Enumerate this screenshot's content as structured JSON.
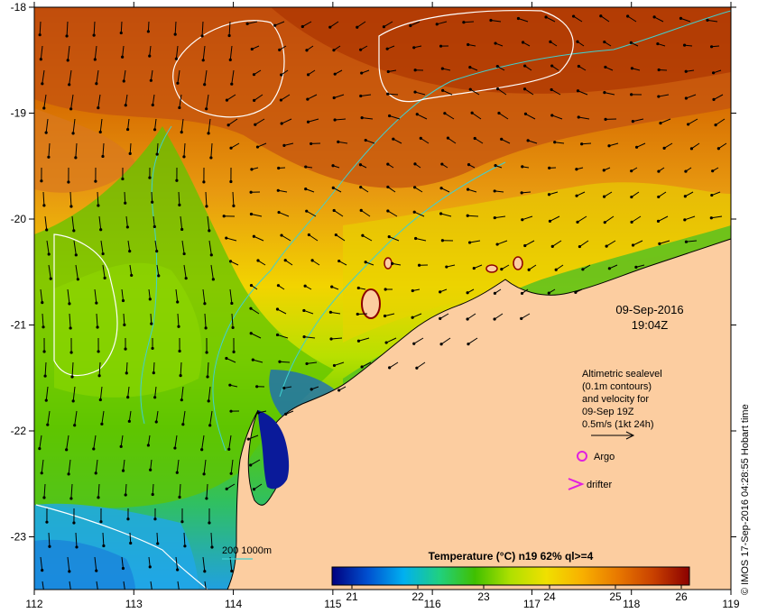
{
  "map": {
    "x_ticks": [
      "112",
      "113",
      "114",
      "115",
      "116",
      "117",
      "118",
      "119"
    ],
    "y_ticks": [
      "-18",
      "-19",
      "-20",
      "-21",
      "-22",
      "-23"
    ],
    "date_line": "09-Sep-2016",
    "time_line": "19:04Z",
    "info": {
      "line1": "Altimetric sealevel",
      "line2": "(0.1m contours)",
      "line3": "and velocity for",
      "line4": "09-Sep 19Z",
      "line5": "0.5m/s (1kt 24h)"
    },
    "legend": {
      "argo": "Argo",
      "drifter": "drifter",
      "argo_color": "#e020e0",
      "drifter_color": "#e020e0"
    },
    "isobath_label": "200  1000m",
    "isobath_color": "#40d0d0",
    "land_color": "#fccda0",
    "colorbar": {
      "title": "Temperature (°C) n19 62% ql>=4",
      "ticks": [
        "21",
        "22",
        "23",
        "24",
        "25",
        "26"
      ],
      "colors": [
        "#00007f",
        "#0050d0",
        "#00b0f0",
        "#20d080",
        "#40c000",
        "#b0e000",
        "#f0e000",
        "#f8b000",
        "#e87800",
        "#c84000",
        "#8b0000"
      ]
    },
    "credit": "© IMOS 17-Sep-2016 04:28:55 Hobart time"
  }
}
